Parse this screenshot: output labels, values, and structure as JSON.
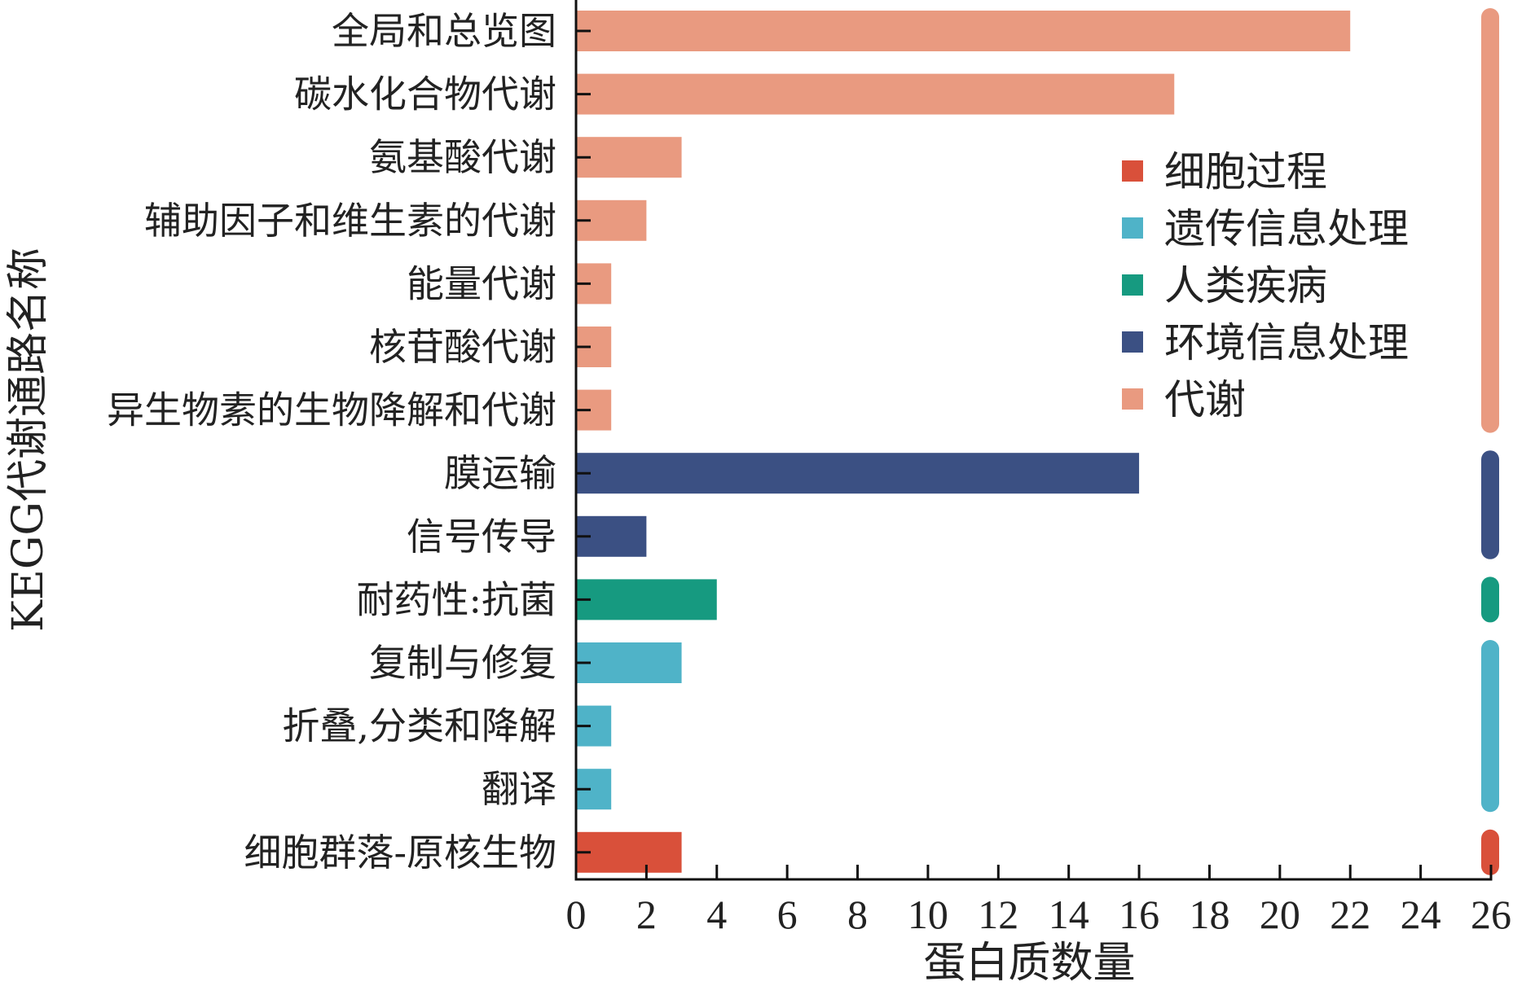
{
  "chart_data": {
    "type": "bar",
    "orientation": "horizontal",
    "xlabel": "蛋白质数量",
    "ylabel": "KEGG代谢通路名称",
    "xlim": [
      0,
      26
    ],
    "xticks": [
      0,
      2,
      4,
      6,
      8,
      10,
      12,
      14,
      16,
      18,
      20,
      22,
      24,
      26
    ],
    "grid": false,
    "legend_position": "top-right",
    "colors": {
      "细胞过程": "#d9503a",
      "遗传信息处理": "#4fb3c8",
      "人类疾病": "#169a80",
      "环境信息处理": "#3b5083",
      "代谢": "#e99a80"
    },
    "legend": [
      "细胞过程",
      "遗传信息处理",
      "人类疾病",
      "环境信息处理",
      "代谢"
    ],
    "bars": [
      {
        "label": "全局和总览图",
        "value": 22,
        "group": "代谢"
      },
      {
        "label": "碳水化合物代谢",
        "value": 17,
        "group": "代谢"
      },
      {
        "label": "氨基酸代谢",
        "value": 3,
        "group": "代谢"
      },
      {
        "label": "辅助因子和维生素的代谢",
        "value": 2,
        "group": "代谢"
      },
      {
        "label": "能量代谢",
        "value": 1,
        "group": "代谢"
      },
      {
        "label": "核苷酸代谢",
        "value": 1,
        "group": "代谢"
      },
      {
        "label": "异生物素的生物降解和代谢",
        "value": 1,
        "group": "代谢"
      },
      {
        "label": "膜运输",
        "value": 16,
        "group": "环境信息处理"
      },
      {
        "label": "信号传导",
        "value": 2,
        "group": "环境信息处理"
      },
      {
        "label": "耐药性:抗菌",
        "value": 4,
        "group": "人类疾病"
      },
      {
        "label": "复制与修复",
        "value": 3,
        "group": "遗传信息处理"
      },
      {
        "label": "折叠,分类和降解",
        "value": 1,
        "group": "遗传信息处理"
      },
      {
        "label": "翻译",
        "value": 1,
        "group": "遗传信息处理"
      },
      {
        "label": "细胞群落-原核生物",
        "value": 3,
        "group": "细胞过程"
      }
    ]
  }
}
